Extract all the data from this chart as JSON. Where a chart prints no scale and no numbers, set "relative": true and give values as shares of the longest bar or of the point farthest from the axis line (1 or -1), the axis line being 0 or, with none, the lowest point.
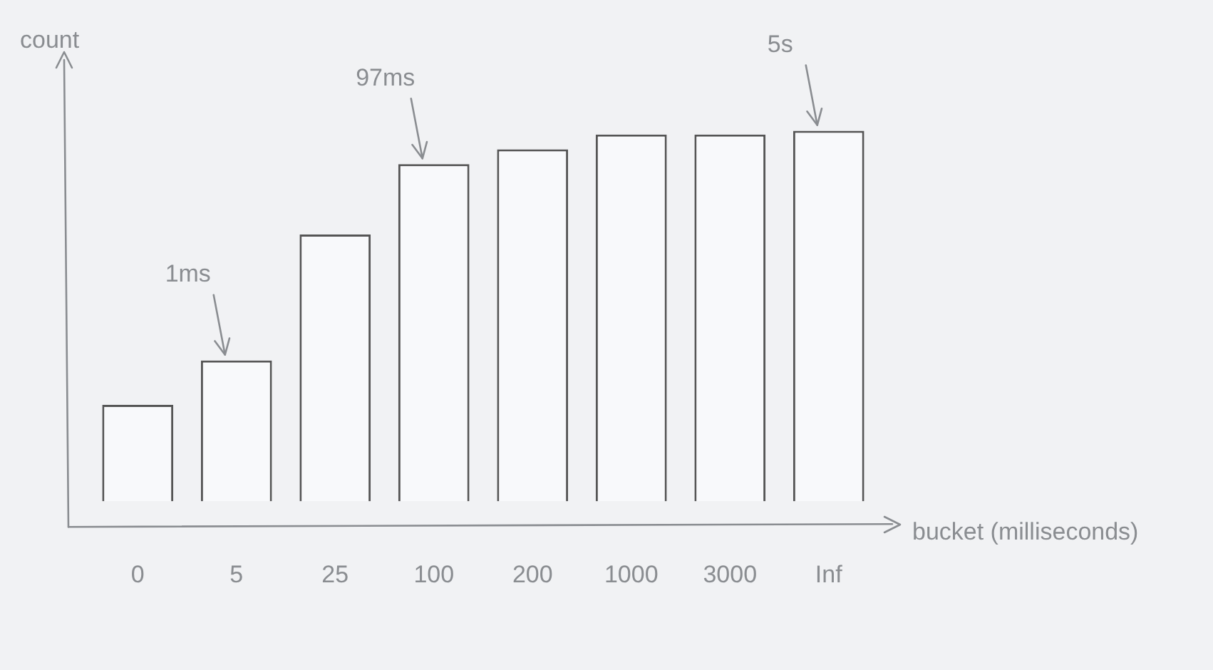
{
  "chart_data": {
    "type": "bar",
    "relative": true,
    "xlabel": "bucket (milliseconds)",
    "ylabel": "count",
    "categories": [
      "0",
      "5",
      "25",
      "100",
      "200",
      "1000",
      "3000",
      "Inf"
    ],
    "values": [
      0.26,
      0.38,
      0.72,
      0.91,
      0.95,
      0.99,
      0.99,
      1
    ],
    "color": "#f8f9fb",
    "annotations": [
      {
        "text": "1ms",
        "x": "5",
        "y": 0.38
      },
      {
        "text": "97ms",
        "x": "100",
        "y": 0.91
      },
      {
        "text": "5s",
        "x": "Inf",
        "y": 1
      }
    ],
    "grid": false,
    "legend": false
  }
}
